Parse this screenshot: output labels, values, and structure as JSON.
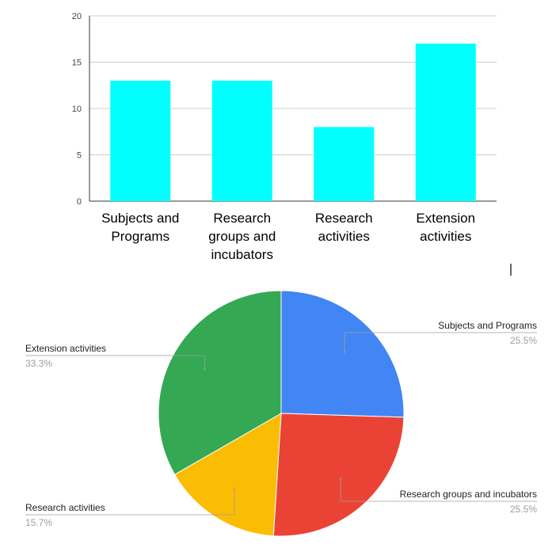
{
  "chart_data": [
    {
      "type": "bar",
      "categories": [
        "Subjects and Programs",
        "Research groups and incubators",
        "Research activities",
        "Extension activities"
      ],
      "category_lines": [
        [
          "Subjects and",
          "Programs"
        ],
        [
          "Research",
          "groups and",
          "incubators"
        ],
        [
          "Research",
          "activities"
        ],
        [
          "Extension",
          "activities"
        ]
      ],
      "values": [
        13,
        13,
        8,
        17
      ],
      "ylim": [
        0,
        20
      ],
      "yticks": [
        "0",
        "5",
        "10",
        "15",
        "20"
      ],
      "color": "#00FFFF",
      "grid": true
    },
    {
      "type": "pie",
      "labels": [
        "Subjects and Programs",
        "Research groups and incubators",
        "Research activities",
        "Extension activities"
      ],
      "percent_labels": [
        "25.5%",
        "25.5%",
        "15.7%",
        "33.3%"
      ],
      "values": [
        25.5,
        25.5,
        15.7,
        33.3
      ],
      "colors": [
        "#4285F4",
        "#EA4335",
        "#FBBC04",
        "#34A853"
      ]
    }
  ]
}
